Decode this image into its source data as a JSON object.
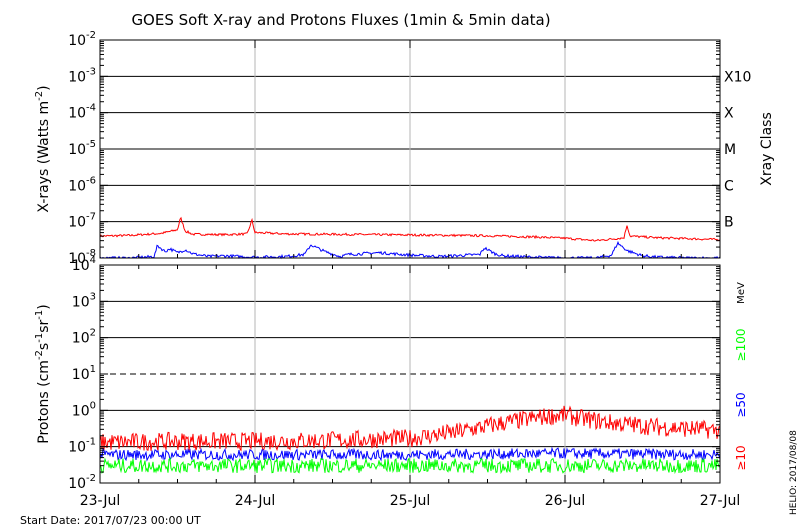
{
  "title": "GOES Soft X-ray and Protons Fluxes   (1min & 5min data)",
  "start_date": "Start Date: 2017/07/23 00:00 UT",
  "credit": "HELIO: 2017/08/08",
  "x_ticks": [
    "23-Jul",
    "24-Jul",
    "25-Jul",
    "26-Jul",
    "27-Jul"
  ],
  "colors": {
    "red": "#ff0000",
    "blue": "#0000ff",
    "green": "#00ff00",
    "grid": "#b4b4b4"
  },
  "chart_data": [
    {
      "type": "line",
      "panel": "xray",
      "ylabel": "X-rays (Watts m⁻²)",
      "ylabel_parts": [
        "X-rays (Watts m",
        "-2",
        ")"
      ],
      "y_scale": "log",
      "ylim": [
        1e-08,
        0.01
      ],
      "y_tick_labels": [
        {
          "base": "10",
          "exp": "-8"
        },
        {
          "base": "10",
          "exp": "-7"
        },
        {
          "base": "10",
          "exp": "-6"
        },
        {
          "base": "10",
          "exp": "-5"
        },
        {
          "base": "10",
          "exp": "-4"
        },
        {
          "base": "10",
          "exp": "-3"
        },
        {
          "base": "10",
          "exp": "-2"
        }
      ],
      "right_axis_label": "Xray Class",
      "class_labels": [
        "B",
        "C",
        "M",
        "X",
        "X10"
      ],
      "x_range_days": [
        "2017-07-23",
        "2017-07-27"
      ],
      "series": [
        {
          "color": "red",
          "noise": 0.06,
          "x": [
            0.0,
            0.2,
            0.4,
            0.5,
            0.52,
            0.55,
            0.6,
            0.8,
            0.95,
            0.98,
            1.0,
            1.2,
            1.5,
            2.0,
            2.5,
            2.8,
            3.0,
            3.2,
            3.38,
            3.4,
            3.42,
            3.6,
            3.8,
            4.0
          ],
          "values": [
            4e-08,
            4.2e-08,
            4.8e-08,
            6e-08,
            1.3e-07,
            5.5e-08,
            4.5e-08,
            4.4e-08,
            4.6e-08,
            1.1e-07,
            5e-08,
            4.6e-08,
            4.5e-08,
            4.3e-08,
            4.1e-08,
            3.8e-08,
            3.5e-08,
            3e-08,
            3.6e-08,
            8e-08,
            4e-08,
            3.6e-08,
            3.4e-08,
            3.2e-08
          ]
        },
        {
          "color": "blue",
          "noise": 0.08,
          "x": [
            0.0,
            0.2,
            0.35,
            0.37,
            0.42,
            0.45,
            0.5,
            0.55,
            0.6,
            0.7,
            0.8,
            1.0,
            1.2,
            1.32,
            1.36,
            1.45,
            1.55,
            1.6,
            1.8,
            2.0,
            2.2,
            2.45,
            2.48,
            2.55,
            2.6,
            2.8,
            3.0,
            3.2,
            3.3,
            3.34,
            3.4,
            3.5,
            3.6,
            3.8,
            4.0
          ],
          "values": [
            1e-08,
            1e-08,
            1.1e-08,
            2.2e-08,
            1.5e-08,
            1.8e-08,
            1.4e-08,
            1.7e-08,
            1.3e-08,
            1.1e-08,
            1.15e-08,
            1.05e-08,
            1.1e-08,
            1.25e-08,
            2.3e-08,
            1.5e-08,
            1.1e-08,
            1.25e-08,
            1.4e-08,
            1.2e-08,
            1.1e-08,
            1.25e-08,
            1.9e-08,
            1.3e-08,
            1.15e-08,
            1.05e-08,
            1e-08,
            1e-08,
            1.2e-08,
            2.6e-08,
            1.6e-08,
            1.15e-08,
            1.05e-08,
            1e-08,
            1e-08
          ]
        }
      ]
    },
    {
      "type": "line",
      "panel": "protons",
      "ylabel": "Protons (cm⁻²s⁻¹sr⁻¹)",
      "ylabel_parts": [
        "Protons (cm",
        "-2",
        "s",
        "-1",
        "sr",
        "-1",
        ")"
      ],
      "y_scale": "log",
      "ylim": [
        0.01,
        10000
      ],
      "y_tick_labels": [
        {
          "base": "10",
          "exp": "-2"
        },
        {
          "base": "10",
          "exp": "-1"
        },
        {
          "base": "10",
          "exp": "0"
        },
        {
          "base": "10",
          "exp": "1"
        },
        {
          "base": "10",
          "exp": "2"
        },
        {
          "base": "10",
          "exp": "3"
        },
        {
          "base": "10",
          "exp": "4"
        }
      ],
      "threshold_line": 10,
      "right_axis_unit": "MeV",
      "energy_labels": [
        {
          "text": "≥100",
          "color": "green"
        },
        {
          "text": "≥50",
          "color": "blue"
        },
        {
          "text": "≥10",
          "color": "red"
        }
      ],
      "x_range_days": [
        "2017-07-23",
        "2017-07-27"
      ],
      "series": [
        {
          "color": "red",
          "noise": 0.5,
          "x": [
            0.0,
            0.5,
            1.0,
            1.5,
            2.0,
            2.3,
            2.6,
            2.9,
            3.0,
            3.1,
            3.3,
            3.6,
            4.0
          ],
          "values": [
            0.13,
            0.14,
            0.14,
            0.15,
            0.17,
            0.25,
            0.45,
            0.7,
            0.75,
            0.6,
            0.45,
            0.35,
            0.28
          ]
        },
        {
          "color": "blue",
          "noise": 0.3,
          "x": [
            0.0,
            1.0,
            2.0,
            3.0,
            4.0
          ],
          "values": [
            0.06,
            0.06,
            0.06,
            0.065,
            0.06
          ]
        },
        {
          "color": "green",
          "noise": 0.4,
          "x": [
            0.0,
            1.0,
            2.0,
            3.0,
            4.0
          ],
          "values": [
            0.03,
            0.03,
            0.03,
            0.03,
            0.03
          ]
        }
      ]
    }
  ]
}
